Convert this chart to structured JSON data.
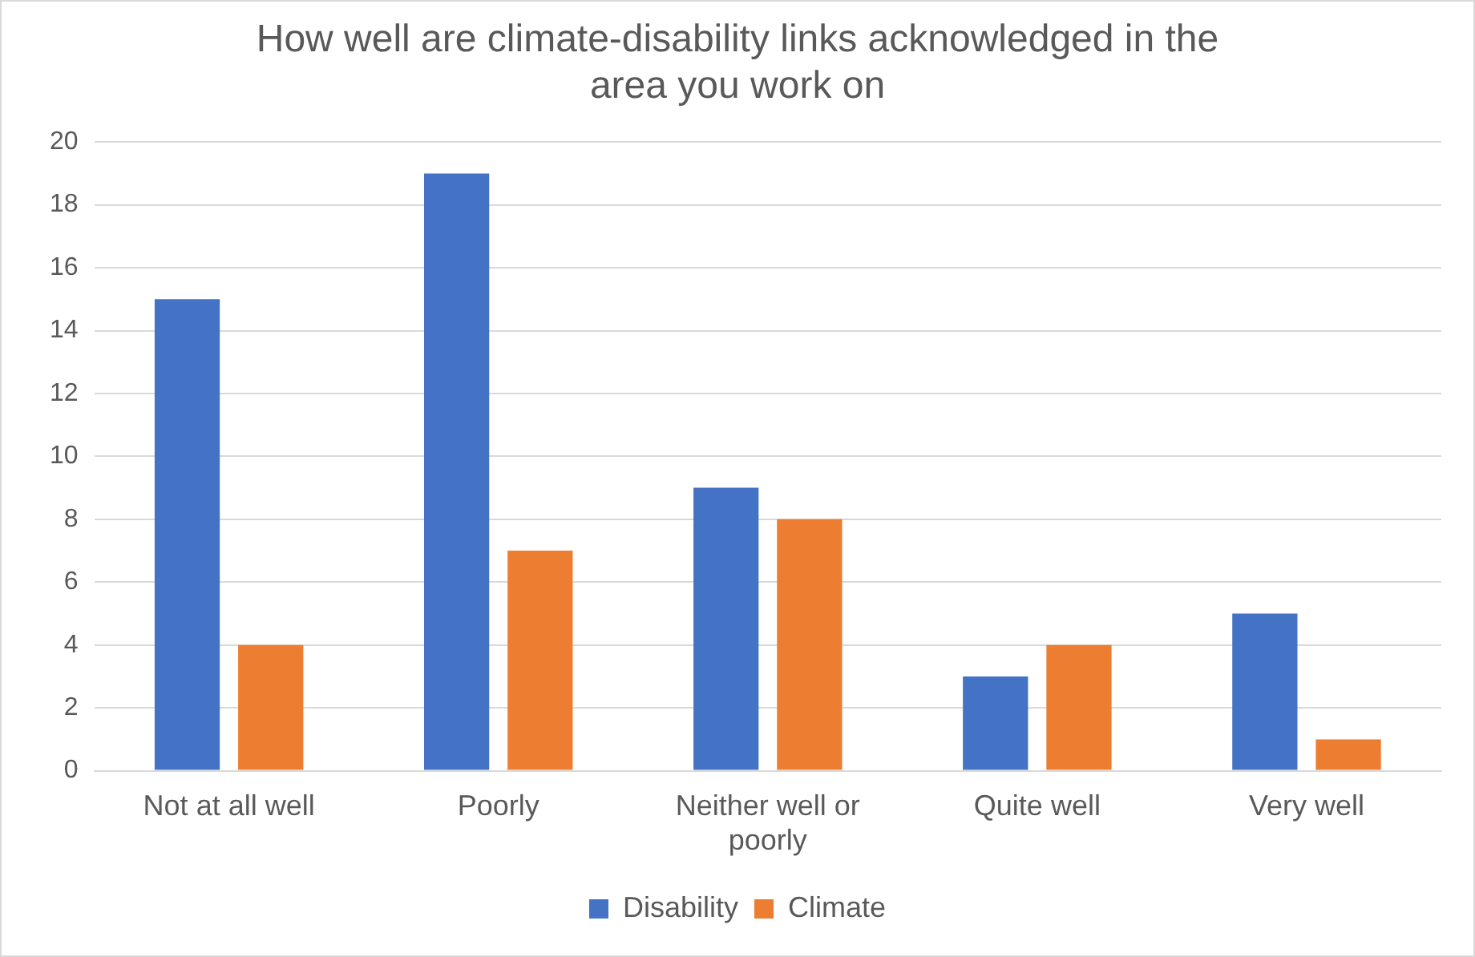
{
  "chart_data": {
    "type": "bar",
    "title": "How well are climate-disability links acknowledged in the area you work on",
    "categories": [
      "Not at all well",
      "Poorly",
      "Neither well or poorly",
      "Quite well",
      "Very well"
    ],
    "series": [
      {
        "name": "Disability",
        "color": "#4472c4",
        "values": [
          15,
          19,
          9,
          3,
          5
        ]
      },
      {
        "name": "Climate",
        "color": "#ed7d31",
        "values": [
          4,
          7,
          8,
          4,
          1
        ]
      }
    ],
    "ylim": [
      0,
      20
    ],
    "yticks": [
      0,
      2,
      4,
      6,
      8,
      10,
      12,
      14,
      16,
      18,
      20
    ],
    "grid": "y",
    "legend": "bottom"
  }
}
